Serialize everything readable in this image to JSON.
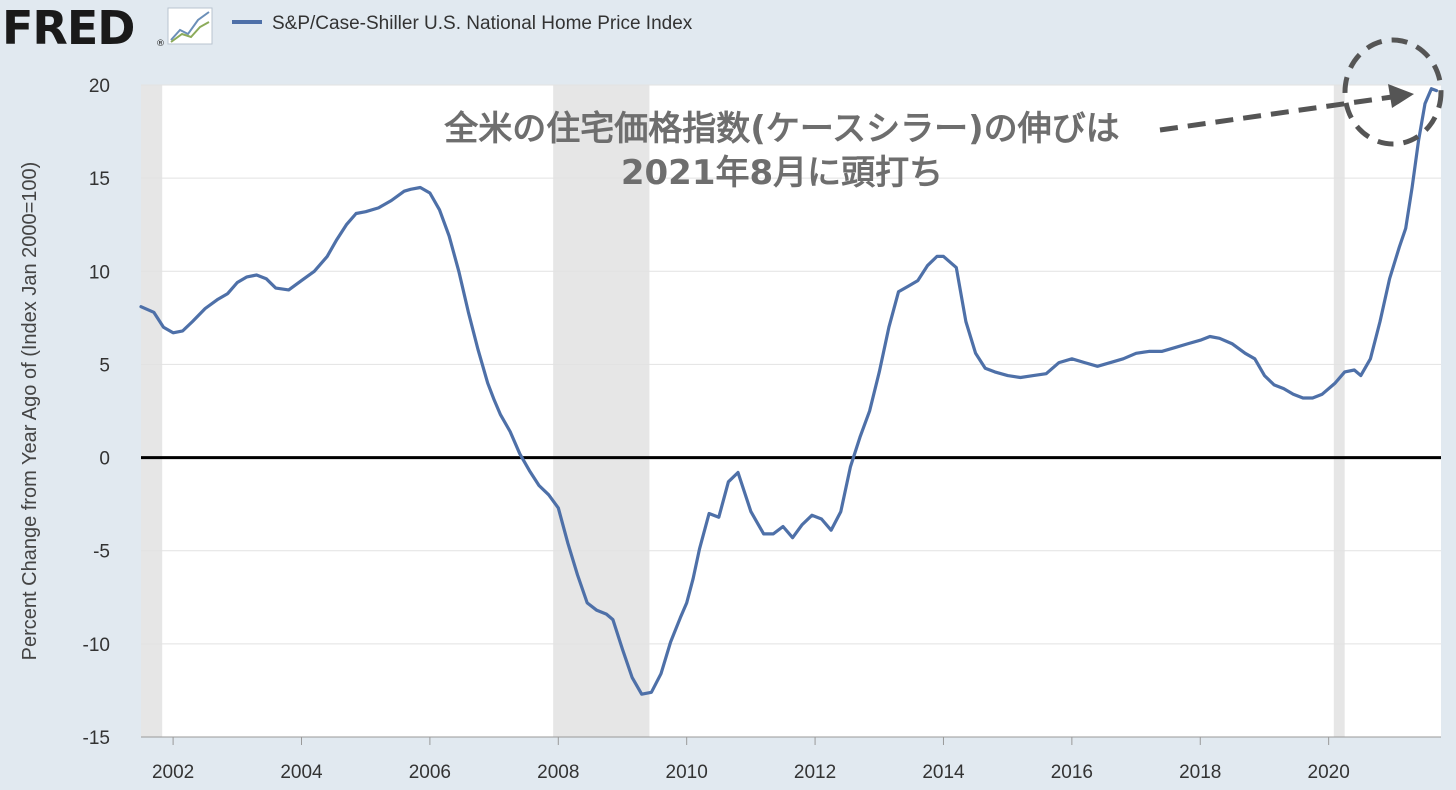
{
  "header": {
    "logo_text": "FRED",
    "logo_registered": "®",
    "logo_icon": "chart-line-icon",
    "legend_label": "S&P/Case-Shiller U.S. National Home Price Index",
    "legend_color": "#4e70a8"
  },
  "annotation": {
    "line1": "全米の住宅価格指数(ケースシラー)の伸びは",
    "line2": "2021年8月に頭打ち",
    "color": "#6e6e6e"
  },
  "chart_data": {
    "type": "line",
    "xlabel": "",
    "ylabel": "Percent Change from Year Ago of (Index Jan 2000=100)",
    "xlim": [
      2001.5,
      2021.75
    ],
    "ylim": [
      -15,
      20
    ],
    "yticks": [
      20,
      15,
      10,
      5,
      0,
      -5,
      -10,
      -15
    ],
    "xticks": [
      "2002",
      "2004",
      "2006",
      "2008",
      "2010",
      "2012",
      "2014",
      "2016",
      "2018",
      "2020"
    ],
    "recessions": [
      [
        2001.25,
        2001.83
      ],
      [
        2007.92,
        2009.42
      ],
      [
        2020.08,
        2020.25
      ]
    ],
    "zero_line": true,
    "grid": "horizontal",
    "series": [
      {
        "name": "S&P/Case-Shiller U.S. National Home Price Index",
        "color": "#4e70a8",
        "x": [
          2001.5,
          2001.7,
          2001.85,
          2002.0,
          2002.15,
          2002.3,
          2002.5,
          2002.7,
          2002.85,
          2003.0,
          2003.15,
          2003.3,
          2003.45,
          2003.6,
          2003.8,
          2004.0,
          2004.2,
          2004.4,
          2004.55,
          2004.7,
          2004.85,
          2005.0,
          2005.2,
          2005.4,
          2005.6,
          2005.7,
          2005.85,
          2006.0,
          2006.15,
          2006.3,
          2006.45,
          2006.6,
          2006.75,
          2006.9,
          2007.0,
          2007.1,
          2007.25,
          2007.4,
          2007.55,
          2007.7,
          2007.85,
          2008.0,
          2008.15,
          2008.3,
          2008.45,
          2008.6,
          2008.75,
          2008.85,
          2009.0,
          2009.15,
          2009.3,
          2009.45,
          2009.6,
          2009.75,
          2009.9,
          2010.0,
          2010.1,
          2010.2,
          2010.35,
          2010.5,
          2010.65,
          2010.8,
          2011.0,
          2011.1,
          2011.2,
          2011.35,
          2011.5,
          2011.65,
          2011.8,
          2011.95,
          2012.1,
          2012.25,
          2012.4,
          2012.55,
          2012.7,
          2012.85,
          2013.0,
          2013.15,
          2013.3,
          2013.45,
          2013.6,
          2013.75,
          2013.9,
          2014.0,
          2014.2,
          2014.35,
          2014.5,
          2014.65,
          2014.8,
          2015.0,
          2015.2,
          2015.4,
          2015.6,
          2015.8,
          2016.0,
          2016.2,
          2016.4,
          2016.6,
          2016.8,
          2017.0,
          2017.2,
          2017.4,
          2017.6,
          2017.8,
          2018.0,
          2018.15,
          2018.3,
          2018.5,
          2018.7,
          2018.85,
          2019.0,
          2019.15,
          2019.3,
          2019.45,
          2019.6,
          2019.75,
          2019.9,
          2020.1,
          2020.25,
          2020.4,
          2020.5,
          2020.65,
          2020.8,
          2020.95,
          2021.1,
          2021.2,
          2021.3,
          2021.4,
          2021.5,
          2021.6,
          2021.68
        ],
        "y": [
          8.1,
          7.8,
          7.0,
          6.7,
          6.8,
          7.3,
          8.0,
          8.5,
          8.8,
          9.4,
          9.7,
          9.8,
          9.6,
          9.1,
          9.0,
          9.5,
          10.0,
          10.8,
          11.7,
          12.5,
          13.1,
          13.2,
          13.4,
          13.8,
          14.3,
          14.4,
          14.5,
          14.2,
          13.3,
          11.9,
          10.0,
          7.8,
          5.8,
          4.0,
          3.1,
          2.3,
          1.4,
          0.2,
          -0.7,
          -1.5,
          -2.0,
          -2.7,
          -4.6,
          -6.3,
          -7.8,
          -8.2,
          -8.4,
          -8.7,
          -10.3,
          -11.8,
          -12.7,
          -12.6,
          -11.6,
          -9.9,
          -8.6,
          -7.8,
          -6.5,
          -4.9,
          -3.0,
          -3.2,
          -1.3,
          -0.8,
          -2.9,
          -3.5,
          -4.1,
          -4.1,
          -3.7,
          -4.3,
          -3.6,
          -3.1,
          -3.3,
          -3.9,
          -2.9,
          -0.5,
          1.1,
          2.5,
          4.6,
          7.0,
          8.9,
          9.2,
          9.5,
          10.3,
          10.8,
          10.8,
          10.2,
          7.3,
          5.6,
          4.8,
          4.6,
          4.4,
          4.3,
          4.4,
          4.5,
          5.1,
          5.3,
          5.1,
          4.9,
          5.1,
          5.3,
          5.6,
          5.7,
          5.7,
          5.9,
          6.1,
          6.3,
          6.5,
          6.4,
          6.1,
          5.6,
          5.3,
          4.4,
          3.9,
          3.7,
          3.4,
          3.2,
          3.2,
          3.4,
          4.0,
          4.6,
          4.7,
          4.4,
          5.3,
          7.3,
          9.6,
          11.3,
          12.3,
          14.5,
          17.0,
          19.0,
          19.8,
          19.7
        ]
      }
    ]
  }
}
